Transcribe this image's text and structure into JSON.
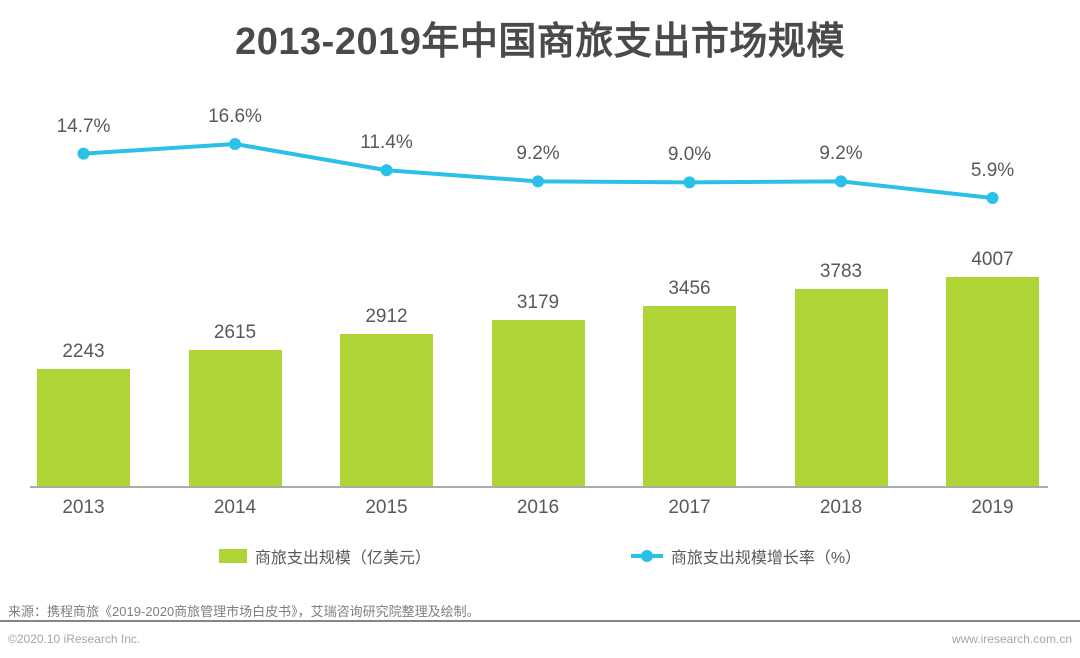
{
  "chart_data": {
    "type": "combo",
    "title": "2013-2019年中国商旅支出市场规模",
    "categories": [
      "2013",
      "2014",
      "2015",
      "2016",
      "2017",
      "2018",
      "2019"
    ],
    "series": [
      {
        "name": "商旅支出规模（亿美元）",
        "type": "bar",
        "color": "#aed436",
        "values": [
          2243,
          2615,
          2912,
          3179,
          3456,
          3783,
          4007
        ],
        "labels": [
          "2243",
          "2615",
          "2912",
          "3179",
          "3456",
          "3783",
          "4007"
        ]
      },
      {
        "name": "商旅支出规模增长率（%）",
        "type": "line",
        "color": "#2ac0e8",
        "values": [
          14.7,
          16.6,
          11.4,
          9.2,
          9.0,
          9.2,
          5.9
        ],
        "labels": [
          "14.7%",
          "16.6%",
          "11.4%",
          "9.2%",
          "9.0%",
          "9.2%",
          "5.9%"
        ]
      }
    ],
    "legend_position": "bottom",
    "grid": false,
    "data_labels": true,
    "xlabel": "",
    "ylabel": ""
  },
  "source": "来源：携程商旅《2019-2020商旅管理市场白皮书》，艾瑞咨询研究院整理及绘制。",
  "footer": {
    "left": "©2020.10 iResearch Inc.",
    "right": "www.iresearch.com.cn"
  }
}
